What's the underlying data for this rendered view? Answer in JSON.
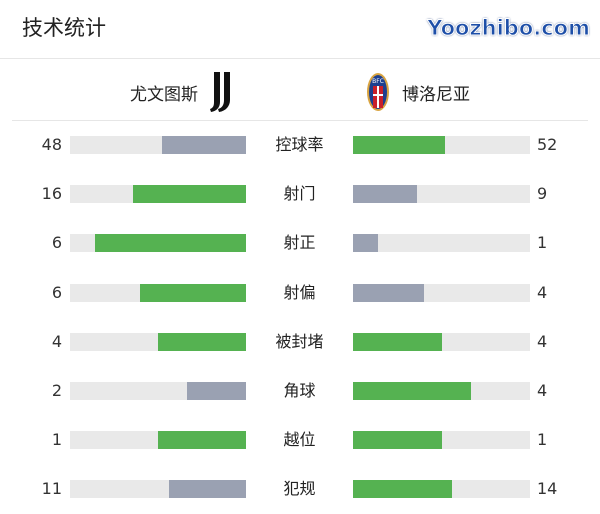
{
  "title": "技术统计",
  "home": {
    "name": "尤文图斯",
    "logo": "juventus-logo"
  },
  "away": {
    "name": "博洛尼亚",
    "logo": "bologna-logo",
    "logo_text": "BFC"
  },
  "colors": {
    "lead": "#55b251",
    "trail": "#9aa1b2",
    "track": "#e9e9e9"
  },
  "stats": [
    {
      "label": "控球率",
      "home": 48,
      "away": 52
    },
    {
      "label": "射门",
      "home": 16,
      "away": 9
    },
    {
      "label": "射正",
      "home": 6,
      "away": 1
    },
    {
      "label": "射偏",
      "home": 6,
      "away": 4
    },
    {
      "label": "被封堵",
      "home": 4,
      "away": 4
    },
    {
      "label": "角球",
      "home": 2,
      "away": 4
    },
    {
      "label": "越位",
      "home": 1,
      "away": 1
    },
    {
      "label": "犯规",
      "home": 11,
      "away": 14
    }
  ],
  "watermark": "Yoozhibo.com"
}
